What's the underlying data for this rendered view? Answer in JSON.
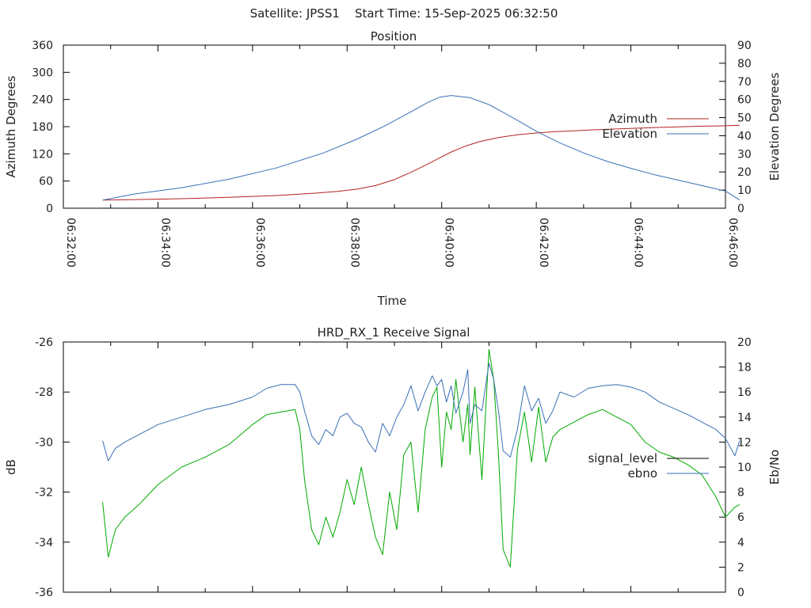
{
  "page_title": "Satellite: JPSS1    Start Time: 15-Sep-2025 06:32:50",
  "chart_data": [
    {
      "type": "line",
      "title": "Position",
      "xlabel": "Time",
      "ylabel_left": "Azimuth Degrees",
      "ylabel_right": "Elevation Degrees",
      "x_unit": "minutes after 06:32:00",
      "xlim": [
        0,
        14
      ],
      "ylim_left": [
        0,
        360
      ],
      "ylim_right": [
        0,
        90
      ],
      "x_tick_values": [
        0,
        2,
        4,
        6,
        8,
        10,
        12,
        14
      ],
      "x_tick_labels": [
        "06:32:00",
        "06:34:00",
        "06:36:00",
        "06:38:00",
        "06:40:00",
        "06:42:00",
        "06:44:00",
        "06:46:00"
      ],
      "y_left_ticks": [
        0,
        60,
        120,
        180,
        240,
        300,
        360
      ],
      "y_right_ticks": [
        0,
        10,
        20,
        30,
        40,
        50,
        60,
        70,
        80,
        90
      ],
      "legend_position": "right",
      "grid": false,
      "series": [
        {
          "name": "Azimuth",
          "axis": "left",
          "color": "#b22222",
          "x": [
            0.83,
            1.5,
            2.5,
            3.5,
            4.5,
            5.3,
            5.8,
            6.2,
            6.6,
            7.0,
            7.3,
            7.6,
            7.9,
            8.2,
            8.5,
            8.8,
            9.2,
            9.6,
            10.0,
            10.4,
            10.8,
            11.2,
            11.7,
            12.5,
            13.5,
            14.0,
            14.3
          ],
          "values": [
            18,
            19,
            21,
            24,
            28,
            33,
            37,
            42,
            50,
            63,
            77,
            92,
            108,
            124,
            137,
            147,
            156,
            162,
            166,
            169,
            171,
            173,
            175,
            178,
            181,
            182,
            183
          ]
        },
        {
          "name": "Elevation",
          "axis": "right",
          "color": "#3a6fb5",
          "x": [
            0.83,
            1.5,
            2.5,
            3.5,
            4.5,
            5.5,
            6.2,
            6.8,
            7.3,
            7.7,
            7.95,
            8.2,
            8.6,
            9.0,
            9.5,
            10.0,
            10.5,
            11.0,
            11.5,
            12.0,
            12.5,
            13.0,
            13.5,
            14.0,
            14.3
          ],
          "values": [
            4.5,
            7.8,
            11.3,
            16.0,
            22.2,
            30.5,
            38.0,
            45.5,
            52.5,
            58.3,
            61.2,
            62.2,
            61.0,
            57.2,
            50.0,
            42.5,
            36.0,
            30.5,
            25.8,
            22.0,
            18.5,
            15.5,
            12.5,
            9.5,
            4.5
          ]
        }
      ]
    },
    {
      "type": "line",
      "title": "HRD_RX_1 Receive Signal",
      "ylabel_left": "dB",
      "ylabel_right": "Eb/No",
      "x_unit": "minutes after 06:32:00",
      "xlim": [
        0,
        14
      ],
      "ylim_left": [
        -36,
        -26
      ],
      "ylim_right": [
        0,
        20
      ],
      "y_left_ticks": [
        -36,
        -34,
        -32,
        -30,
        -28,
        -26
      ],
      "y_right_ticks": [
        0,
        2,
        4,
        6,
        8,
        10,
        12,
        14,
        16,
        18,
        20
      ],
      "legend_position": "right",
      "grid": false,
      "series": [
        {
          "name": "signal_level",
          "axis": "left",
          "color": "#000000",
          "legend_only": true,
          "x": [],
          "values": []
        },
        {
          "name": "",
          "axis": "left",
          "color": "#00aa00",
          "x": [
            0.83,
            0.95,
            1.1,
            1.3,
            1.6,
            2.0,
            2.5,
            3.0,
            3.5,
            4.0,
            4.3,
            4.6,
            4.9,
            5.0,
            5.1,
            5.25,
            5.4,
            5.55,
            5.7,
            5.85,
            6.0,
            6.15,
            6.3,
            6.45,
            6.6,
            6.75,
            6.9,
            7.05,
            7.2,
            7.35,
            7.5,
            7.65,
            7.8,
            7.9,
            8.0,
            8.1,
            8.2,
            8.3,
            8.45,
            8.55,
            8.6,
            8.7,
            8.85,
            9.0,
            9.1,
            9.2,
            9.3,
            9.45,
            9.6,
            9.75,
            9.9,
            10.05,
            10.2,
            10.35,
            10.5,
            10.8,
            11.1,
            11.4,
            11.7,
            12.0,
            12.3,
            12.6,
            12.9,
            13.2,
            13.5,
            13.8,
            14.0,
            14.2,
            14.3
          ],
          "values": [
            -32.4,
            -34.6,
            -33.5,
            -33.0,
            -32.5,
            -31.7,
            -31.0,
            -30.6,
            -30.1,
            -29.3,
            -28.9,
            -28.8,
            -28.7,
            -29.5,
            -31.5,
            -33.5,
            -34.1,
            -33.0,
            -33.8,
            -32.8,
            -31.5,
            -32.5,
            -31.0,
            -32.5,
            -33.8,
            -34.5,
            -32.0,
            -33.5,
            -30.5,
            -30.0,
            -32.8,
            -29.5,
            -28.2,
            -27.8,
            -31.0,
            -28.8,
            -29.5,
            -27.5,
            -30.0,
            -28.5,
            -30.5,
            -27.8,
            -31.5,
            -26.3,
            -27.5,
            -30.5,
            -34.3,
            -35.0,
            -30.3,
            -28.8,
            -30.8,
            -28.6,
            -30.8,
            -29.8,
            -29.5,
            -29.2,
            -28.9,
            -28.7,
            -29.0,
            -29.3,
            -30.0,
            -30.4,
            -30.6,
            -30.9,
            -31.3,
            -32.2,
            -33.0,
            -32.6,
            -32.5
          ]
        },
        {
          "name": "ebno",
          "axis": "right",
          "color": "#3a6fb5",
          "x": [
            0.83,
            0.95,
            1.1,
            1.3,
            1.6,
            2.0,
            2.5,
            3.0,
            3.5,
            4.0,
            4.3,
            4.6,
            4.9,
            5.0,
            5.1,
            5.25,
            5.4,
            5.55,
            5.7,
            5.85,
            6.0,
            6.15,
            6.3,
            6.45,
            6.6,
            6.75,
            6.9,
            7.05,
            7.2,
            7.35,
            7.5,
            7.65,
            7.8,
            7.9,
            8.0,
            8.1,
            8.2,
            8.3,
            8.45,
            8.55,
            8.6,
            8.7,
            8.85,
            9.0,
            9.1,
            9.2,
            9.3,
            9.45,
            9.6,
            9.75,
            9.9,
            10.05,
            10.2,
            10.35,
            10.5,
            10.8,
            11.1,
            11.4,
            11.7,
            12.0,
            12.3,
            12.6,
            12.9,
            13.2,
            13.5,
            13.8,
            14.0,
            14.2,
            14.3
          ],
          "values": [
            12.1,
            10.5,
            11.5,
            12.0,
            12.6,
            13.4,
            14.0,
            14.6,
            15.0,
            15.6,
            16.3,
            16.6,
            16.6,
            16.0,
            14.5,
            12.5,
            11.8,
            13.0,
            12.5,
            14.0,
            14.3,
            13.5,
            13.2,
            12.0,
            11.2,
            13.5,
            12.5,
            14.0,
            15.0,
            16.5,
            14.5,
            16.0,
            17.3,
            16.5,
            17.0,
            15.2,
            16.5,
            14.3,
            16.0,
            17.8,
            13.5,
            15.0,
            14.5,
            18.3,
            17.0,
            14.5,
            11.3,
            10.8,
            13.0,
            16.5,
            14.5,
            15.5,
            13.5,
            14.5,
            16.0,
            15.6,
            16.3,
            16.5,
            16.6,
            16.4,
            16.0,
            15.2,
            14.7,
            14.2,
            13.6,
            13.0,
            12.3,
            10.9,
            12.1
          ]
        }
      ]
    }
  ]
}
